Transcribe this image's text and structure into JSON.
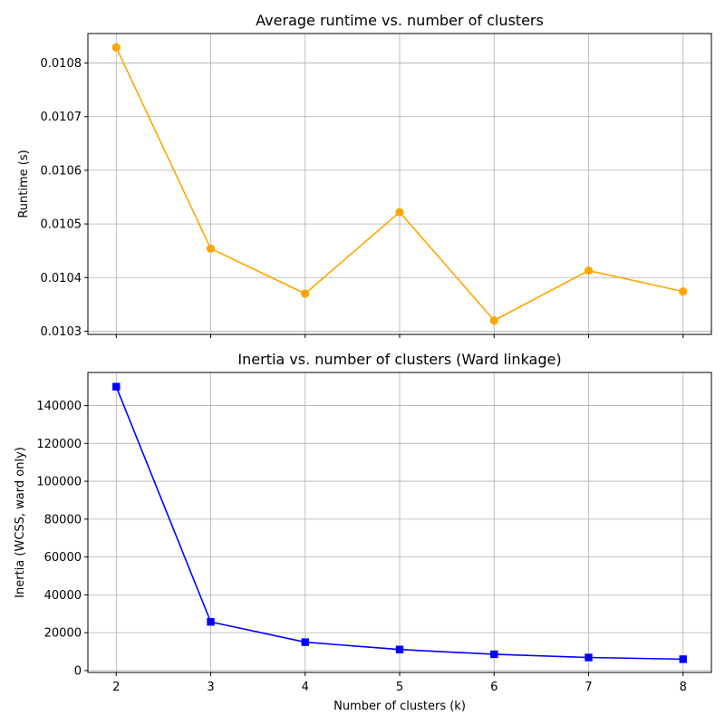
{
  "chart_data": [
    {
      "type": "line",
      "title": "Average runtime vs. number of clusters",
      "xlabel": "",
      "ylabel": "Runtime (s)",
      "x": [
        2,
        3,
        4,
        5,
        6,
        7,
        8
      ],
      "xlim": [
        1.7,
        8.3
      ],
      "ylim": [
        0.010294,
        0.010855
      ],
      "yticks": [
        "0.0103",
        "0.0104",
        "0.0105",
        "0.0106",
        "0.0107",
        "0.0108"
      ],
      "xtick_labels_visible": false,
      "grid": true,
      "series": [
        {
          "values": [
            0.010829,
            0.010454,
            0.01037,
            0.010522,
            0.01032,
            0.010413,
            0.010374
          ],
          "color": "#ffa500",
          "marker": "circle"
        }
      ]
    },
    {
      "type": "line",
      "title": "Inertia vs. number of clusters (Ward linkage)",
      "xlabel": "Number of clusters (k)",
      "ylabel": "Inertia (WCSS, ward only)",
      "x": [
        2,
        3,
        4,
        5,
        6,
        7,
        8
      ],
      "xlim": [
        1.7,
        8.3
      ],
      "ylim": [
        -1000,
        157500
      ],
      "yticks": [
        "0",
        "20000",
        "40000",
        "60000",
        "80000",
        "100000",
        "120000",
        "140000"
      ],
      "xticks": [
        "2",
        "3",
        "4",
        "5",
        "6",
        "7",
        "8"
      ],
      "grid": true,
      "series": [
        {
          "values": [
            150000,
            25700,
            15000,
            11100,
            8600,
            6900,
            6000
          ],
          "color": "#0000ff",
          "marker": "square"
        }
      ]
    }
  ]
}
